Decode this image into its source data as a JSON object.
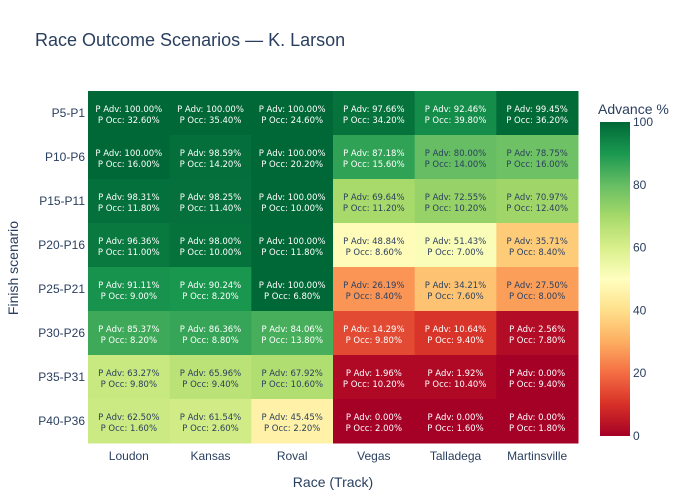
{
  "chart_data": {
    "type": "heatmap",
    "title": "Race Outcome Scenarios — K. Larson",
    "xlabel": "Race (Track)",
    "ylabel": "Finish scenario",
    "colorbar_title": "Advance %",
    "colorscale": "RdYlGn",
    "zlim": [
      0,
      100
    ],
    "colorbar_ticks": [
      "0",
      "20",
      "40",
      "60",
      "80",
      "100"
    ],
    "x": [
      "Loudon",
      "Kansas",
      "Roval",
      "Vegas",
      "Talladega",
      "Martinsville"
    ],
    "y": [
      "P5-P1",
      "P10-P6",
      "P15-P11",
      "P20-P16",
      "P25-P21",
      "P30-P26",
      "P35-P31",
      "P40-P36"
    ],
    "p_adv": [
      [
        100.0,
        100.0,
        100.0,
        97.66,
        92.46,
        99.45
      ],
      [
        100.0,
        98.59,
        100.0,
        87.18,
        80.0,
        78.75
      ],
      [
        98.31,
        98.25,
        100.0,
        69.64,
        72.55,
        70.97
      ],
      [
        96.36,
        98.0,
        100.0,
        48.84,
        51.43,
        35.71
      ],
      [
        91.11,
        90.24,
        100.0,
        26.19,
        34.21,
        27.5
      ],
      [
        85.37,
        86.36,
        84.06,
        14.29,
        10.64,
        2.56
      ],
      [
        63.27,
        65.96,
        67.92,
        1.96,
        1.92,
        0.0
      ],
      [
        62.5,
        61.54,
        45.45,
        0.0,
        0.0,
        0.0
      ]
    ],
    "p_occ": [
      [
        32.6,
        35.4,
        24.6,
        34.2,
        39.8,
        36.2
      ],
      [
        16.0,
        14.2,
        20.2,
        15.6,
        14.0,
        16.0
      ],
      [
        11.8,
        11.4,
        10.0,
        11.2,
        10.2,
        12.4
      ],
      [
        11.0,
        10.0,
        11.8,
        8.6,
        7.0,
        8.4
      ],
      [
        9.0,
        8.2,
        6.8,
        8.4,
        7.6,
        8.0
      ],
      [
        8.2,
        8.8,
        13.8,
        9.8,
        9.4,
        7.8
      ],
      [
        9.8,
        9.4,
        10.6,
        10.2,
        10.4,
        9.4
      ],
      [
        1.6,
        2.6,
        2.2,
        2.0,
        1.6,
        1.8
      ]
    ],
    "cell_label_prefix_adv": "P Adv: ",
    "cell_label_prefix_occ": "P Occ: ",
    "cell_label_suffix": "%",
    "grid": false,
    "legend": "colorbar-right"
  }
}
